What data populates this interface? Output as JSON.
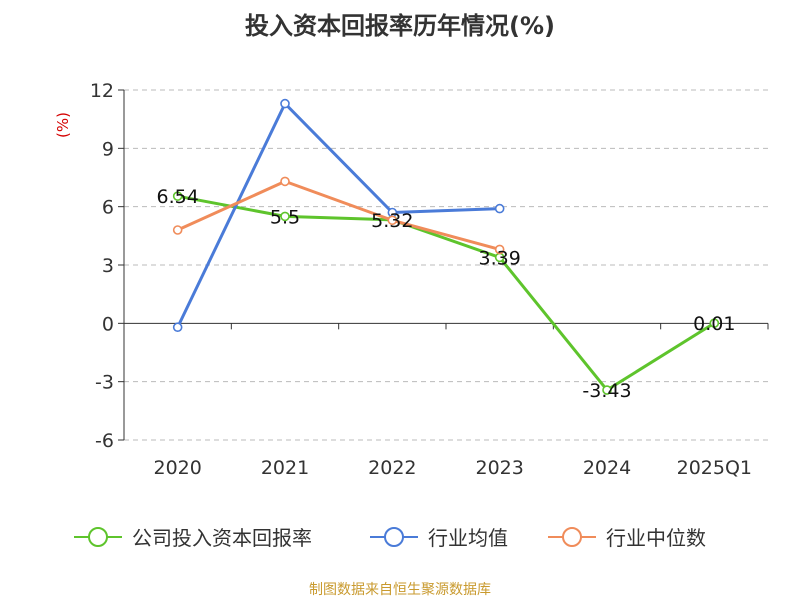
{
  "colors": {
    "company": "#5ec42c",
    "industry_avg": "#4a7bd8",
    "industry_median": "#f08c5a",
    "grid": "#bbbbbb",
    "axis": "#333333",
    "unit": "#d40000",
    "source": "#c99a2e"
  },
  "source_text": "制图数据来自恒生聚源数据库",
  "chart_data": {
    "type": "line",
    "title": "投入资本回报率历年情况(%)",
    "ylabel": "(%)",
    "xlabel": "",
    "categories": [
      "2020",
      "2021",
      "2022",
      "2023",
      "2024",
      "2025Q1"
    ],
    "ylim": [
      -6,
      12
    ],
    "yticks": [
      12,
      9,
      6,
      3,
      0,
      -3,
      -6
    ],
    "ytick_labels": [
      "12",
      "9",
      "6",
      "3",
      "0",
      "-3",
      "-6"
    ],
    "grid": true,
    "legend_position": "bottom",
    "series": [
      {
        "name": "公司投入资本回报率",
        "color_key": "company",
        "values": [
          6.54,
          5.5,
          5.32,
          3.39,
          -3.43,
          0.01
        ],
        "labels": [
          "6.54",
          "5.5",
          "5.32",
          "3.39",
          "-3.43",
          "0.01"
        ]
      },
      {
        "name": "行业均值",
        "color_key": "industry_avg",
        "values": [
          -0.2,
          11.3,
          5.7,
          5.9,
          null,
          null
        ]
      },
      {
        "name": "行业中位数",
        "color_key": "industry_median",
        "values": [
          4.8,
          7.3,
          5.3,
          3.8,
          null,
          null
        ]
      }
    ]
  }
}
